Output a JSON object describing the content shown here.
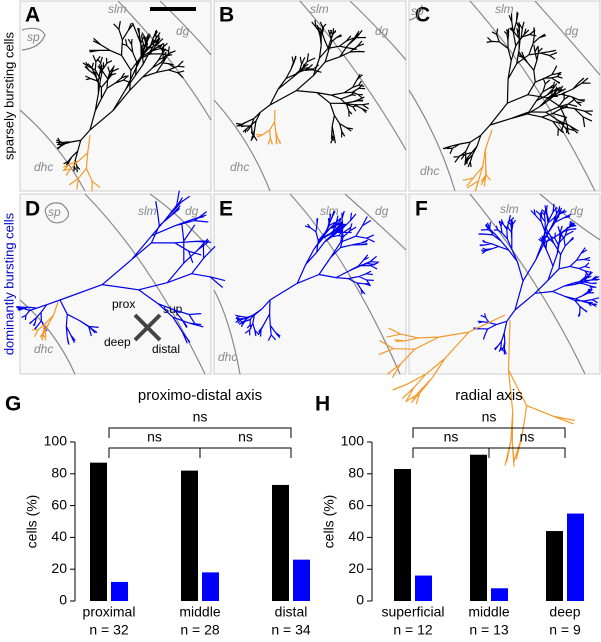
{
  "figure": {
    "row_labels": [
      "sparsely bursting cells",
      "dominantly bursting cells"
    ],
    "panels": [
      {
        "label": "A",
        "regions": [
          "slm",
          "dg",
          "sp",
          "dhc"
        ]
      },
      {
        "label": "B",
        "regions": [
          "slm",
          "dg",
          "dhc"
        ]
      },
      {
        "label": "C",
        "regions": [
          "sp",
          "slm",
          "dg",
          "dhc"
        ]
      },
      {
        "label": "D",
        "regions": [
          "sp",
          "slm",
          "dg",
          "dhc"
        ]
      },
      {
        "label": "E",
        "regions": [
          "slm",
          "dg",
          "dhc"
        ]
      },
      {
        "label": "F",
        "regions": [
          "slm",
          "dg"
        ]
      }
    ],
    "axes_legend": [
      "prox",
      "sup",
      "deep",
      "distal"
    ]
  },
  "chart_data": [
    {
      "type": "bar",
      "panel_label": "G",
      "title": "proximo-distal axis",
      "ylabel": "cells (%)",
      "categories": [
        "proximal",
        "middle",
        "distal"
      ],
      "category_notes": [
        "n = 32",
        "n = 28",
        "n = 34"
      ],
      "series": [
        {
          "color": "#000000",
          "values": [
            87,
            82,
            73
          ]
        },
        {
          "color": "#0000ff",
          "values": [
            12,
            18,
            26
          ]
        }
      ],
      "ylim": [
        0,
        100
      ],
      "yticks": [
        0,
        20,
        40,
        60,
        80,
        100
      ],
      "annotations": [
        "ns",
        "ns",
        "ns"
      ]
    },
    {
      "type": "bar",
      "panel_label": "H",
      "title": "radial axis",
      "ylabel": "cells (%)",
      "categories": [
        "superficial",
        "middle",
        "deep"
      ],
      "category_notes": [
        "n = 12",
        "n = 13",
        "n = 9"
      ],
      "series": [
        {
          "color": "#000000",
          "values": [
            83,
            92,
            44
          ]
        },
        {
          "color": "#0000ff",
          "values": [
            16,
            8,
            55
          ]
        }
      ],
      "ylim": [
        0,
        100
      ],
      "yticks": [
        0,
        20,
        40,
        60,
        80,
        100
      ],
      "annotations": [
        "ns",
        "ns",
        "ns"
      ]
    }
  ]
}
